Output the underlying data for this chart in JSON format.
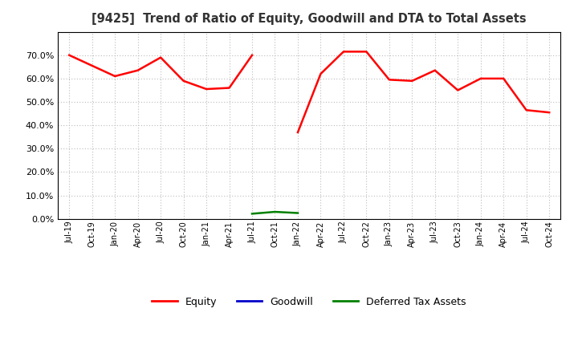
{
  "title": "[9425]  Trend of Ratio of Equity, Goodwill and DTA to Total Assets",
  "x_labels": [
    "Jul-19",
    "Oct-19",
    "Jan-20",
    "Apr-20",
    "Jul-20",
    "Oct-20",
    "Jan-21",
    "Apr-21",
    "Jul-21",
    "Oct-21",
    "Jan-22",
    "Apr-22",
    "Jul-22",
    "Oct-22",
    "Jan-23",
    "Apr-23",
    "Jul-23",
    "Oct-23",
    "Jan-24",
    "Apr-24",
    "Jul-24",
    "Oct-24"
  ],
  "equity": [
    0.7,
    0.655,
    0.61,
    0.635,
    0.69,
    0.59,
    0.555,
    0.56,
    0.7,
    null,
    0.37,
    0.62,
    0.715,
    0.715,
    0.595,
    0.59,
    0.635,
    0.55,
    0.6,
    0.6,
    0.465,
    0.455
  ],
  "goodwill": [
    null,
    null,
    null,
    null,
    null,
    null,
    null,
    null,
    null,
    null,
    null,
    null,
    null,
    null,
    null,
    null,
    null,
    null,
    null,
    null,
    null,
    null
  ],
  "dta": [
    null,
    null,
    null,
    null,
    null,
    null,
    null,
    null,
    0.022,
    0.03,
    0.025,
    null,
    null,
    null,
    null,
    null,
    null,
    null,
    null,
    null,
    null,
    null
  ],
  "equity_color": "#FF0000",
  "goodwill_color": "#0000CC",
  "dta_color": "#008000",
  "background_color": "#FFFFFF",
  "plot_bg_color": "#FFFFFF",
  "grid_color": "#BBBBBB",
  "ylim": [
    0.0,
    0.8
  ],
  "yticks": [
    0.0,
    0.1,
    0.2,
    0.3,
    0.4,
    0.5,
    0.6,
    0.7
  ],
  "legend_labels": [
    "Equity",
    "Goodwill",
    "Deferred Tax Assets"
  ]
}
